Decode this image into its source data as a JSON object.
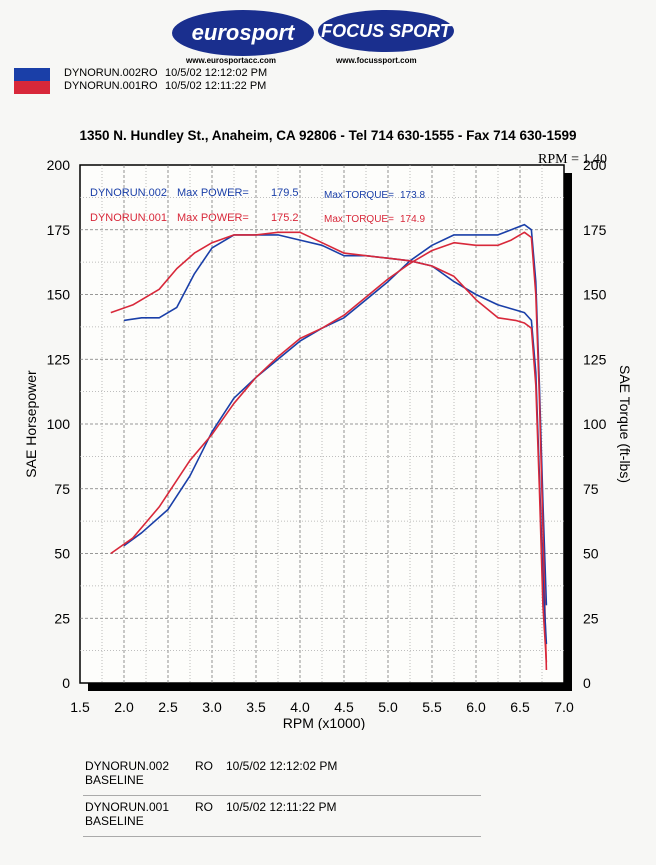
{
  "header": {
    "logos": [
      {
        "text": "eurosport",
        "url": "www.eurosportacc.com"
      },
      {
        "text": "FOCUS SPORT",
        "url": "www.focussport.com"
      }
    ],
    "runs": [
      {
        "name": "DYNORUN.002RO",
        "datetime": "10/5/02 12:12:02 PM",
        "color": "#1a3fa8"
      },
      {
        "name": "DYNORUN.001RO",
        "datetime": "10/5/02 12:11:22 PM",
        "color": "#d8283a"
      }
    ],
    "address": "1350 N. Hundley St., Anaheim, CA 92806 - Tel 714 630-1555 - Fax 714 630-1599",
    "rpm_factor": "RPM = 1.40"
  },
  "chart_data": {
    "type": "line",
    "xlabel": "RPM (x1000)",
    "ylabel": "SAE Horsepower",
    "y2label": "SAE Torque (ft-lbs)",
    "xlim": [
      1.5,
      7.0
    ],
    "ylim": [
      0,
      200
    ],
    "y2lim": [
      0,
      200
    ],
    "xticks": [
      "1.5",
      "2.0",
      "2.5",
      "3.0",
      "3.5",
      "4.0",
      "4.5",
      "5.0",
      "5.5",
      "6.0",
      "6.5",
      "7.0"
    ],
    "yticks": [
      "0",
      "25",
      "50",
      "75",
      "100",
      "125",
      "150",
      "175",
      "200"
    ],
    "y2ticks": [
      "0",
      "25",
      "50",
      "75",
      "100",
      "125",
      "150",
      "175",
      "200"
    ],
    "grid": true,
    "annotations": [
      {
        "run": "DYNORUN.002",
        "power_label": "Max POWER=",
        "power": "179.5",
        "torque_label": "Max TORQUE=",
        "torque": "173.8",
        "color": "#1a3fa8"
      },
      {
        "run": "DYNORUN.001",
        "power_label": "Max POWER=",
        "power": "175.2",
        "torque_label": "Max TORQUE=",
        "torque": "174.9",
        "color": "#d8283a"
      }
    ],
    "series": [
      {
        "name": "DYNORUN.002",
        "kind": "power",
        "color": "#1a3fa8",
        "x": [
          2.0,
          2.2,
          2.5,
          2.75,
          3.0,
          3.25,
          3.5,
          3.75,
          4.0,
          4.25,
          4.5,
          4.75,
          5.0,
          5.25,
          5.5,
          5.75,
          6.0,
          6.25,
          6.4,
          6.55,
          6.63,
          6.68,
          6.72,
          6.76,
          6.8
        ],
        "y": [
          53,
          58,
          67,
          80,
          97,
          110,
          118,
          125,
          132,
          137,
          141,
          148,
          155,
          163,
          169,
          173,
          173,
          173,
          175,
          177,
          175,
          155,
          115,
          70,
          30
        ]
      },
      {
        "name": "DYNORUN.001",
        "kind": "power",
        "color": "#d8283a",
        "x": [
          1.85,
          2.1,
          2.4,
          2.75,
          3.0,
          3.25,
          3.5,
          3.75,
          4.0,
          4.25,
          4.5,
          4.75,
          5.0,
          5.25,
          5.5,
          5.75,
          6.0,
          6.25,
          6.4,
          6.55,
          6.63,
          6.68,
          6.72,
          6.76,
          6.8
        ],
        "y": [
          50,
          56,
          68,
          86,
          96,
          108,
          118,
          126,
          133,
          137,
          142,
          149,
          156,
          162,
          167,
          170,
          169,
          169,
          171,
          174,
          172,
          150,
          110,
          60,
          5
        ]
      },
      {
        "name": "DYNORUN.002",
        "kind": "torque",
        "color": "#1a3fa8",
        "x": [
          2.0,
          2.2,
          2.4,
          2.6,
          2.8,
          3.0,
          3.25,
          3.5,
          3.75,
          4.0,
          4.25,
          4.5,
          4.75,
          5.0,
          5.25,
          5.5,
          5.75,
          6.0,
          6.25,
          6.45,
          6.55,
          6.63,
          6.68,
          6.72,
          6.76,
          6.8
        ],
        "y": [
          140,
          141,
          141,
          145,
          158,
          168,
          173,
          173,
          173,
          171,
          169,
          165,
          165,
          164,
          163,
          161,
          155,
          150,
          146,
          144,
          143,
          140,
          120,
          80,
          40,
          15
        ]
      },
      {
        "name": "DYNORUN.001",
        "kind": "torque",
        "color": "#d8283a",
        "x": [
          1.85,
          2.1,
          2.4,
          2.6,
          2.8,
          3.0,
          3.25,
          3.5,
          3.75,
          4.0,
          4.25,
          4.5,
          4.75,
          5.0,
          5.25,
          5.5,
          5.75,
          6.0,
          6.25,
          6.45,
          6.55,
          6.63,
          6.68,
          6.72,
          6.76,
          6.8
        ],
        "y": [
          143,
          146,
          152,
          160,
          166,
          170,
          173,
          173,
          174,
          174,
          170,
          166,
          165,
          164,
          163,
          161,
          157,
          148,
          141,
          140,
          139,
          137,
          115,
          75,
          30,
          8
        ]
      }
    ]
  },
  "footer": [
    {
      "run": "DYNORUN.002",
      "ro": "RO",
      "datetime": "10/5/02 12:12:02 PM",
      "label": "BASELINE"
    },
    {
      "run": "DYNORUN.001",
      "ro": "RO",
      "datetime": "10/5/02 12:11:22 PM",
      "label": "BASELINE"
    }
  ]
}
